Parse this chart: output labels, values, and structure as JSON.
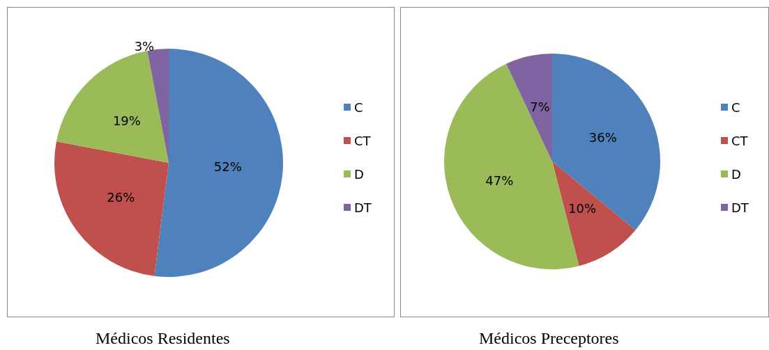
{
  "chart_data": [
    {
      "type": "pie",
      "title": "Médicos Residentes",
      "categories": [
        "C",
        "CT",
        "D",
        "DT"
      ],
      "values": [
        52,
        26,
        19,
        3
      ],
      "value_labels": [
        "52%",
        "26%",
        "19%",
        "3%"
      ],
      "colors": [
        "#4f81bd",
        "#c0504d",
        "#9bbb59",
        "#8064a2"
      ],
      "legend": "right"
    },
    {
      "type": "pie",
      "title": "Médicos Preceptores",
      "categories": [
        "C",
        "CT",
        "D",
        "DT"
      ],
      "values": [
        36,
        10,
        47,
        7
      ],
      "value_labels": [
        "36%",
        "10%",
        "47%",
        "7%"
      ],
      "colors": [
        "#4f81bd",
        "#c0504d",
        "#9bbb59",
        "#8064a2"
      ],
      "legend": "right"
    }
  ]
}
